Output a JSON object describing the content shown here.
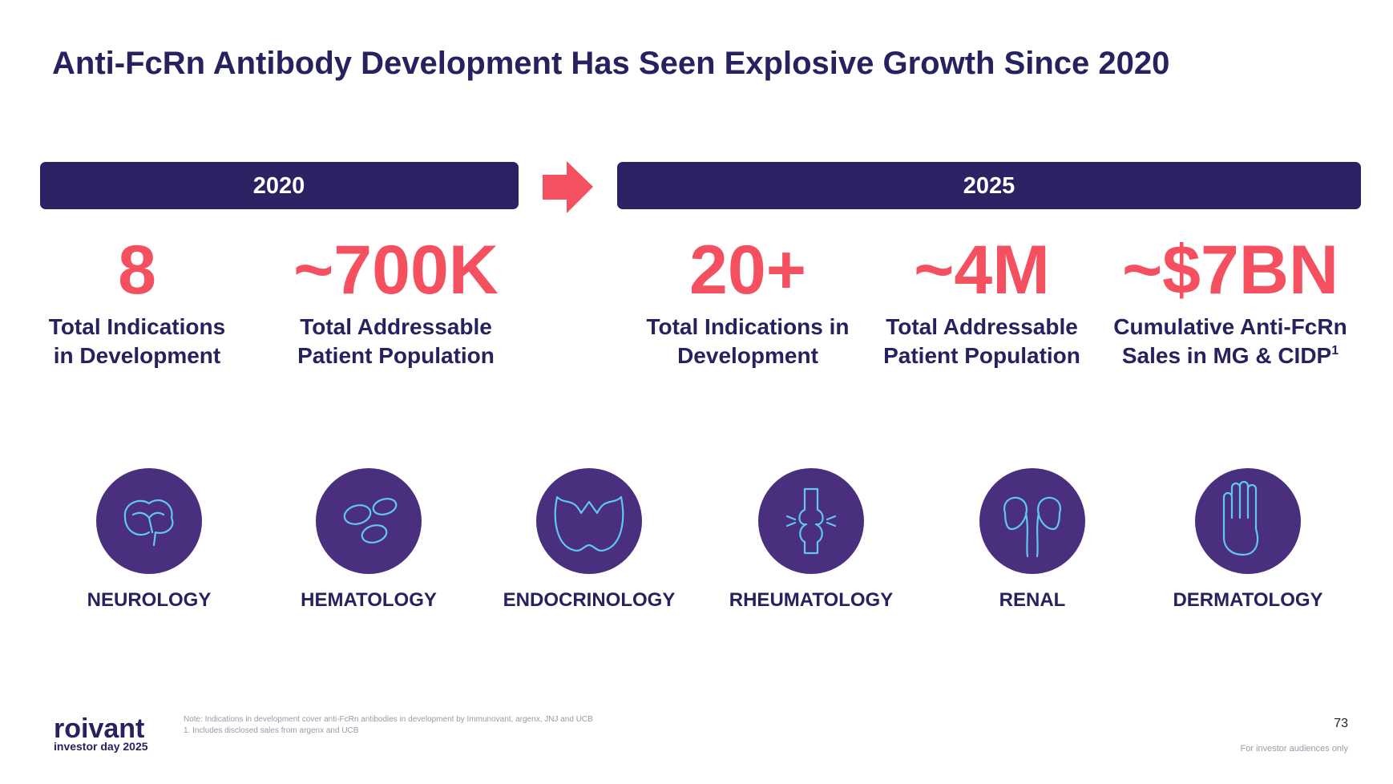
{
  "header": {
    "title": "Anti-FcRn Antibody Development Has Seen Explosive Growth Since 2020"
  },
  "periods": [
    {
      "label": "2020",
      "stats": [
        {
          "value": "8",
          "label_lines": [
            "Total Indications",
            "in Development"
          ]
        },
        {
          "value": "~700K",
          "label_lines": [
            "Total Addressable",
            "Patient Population"
          ]
        }
      ]
    },
    {
      "label": "2025",
      "stats": [
        {
          "value": "20+",
          "label_lines": [
            "Total Indications in",
            "Development"
          ]
        },
        {
          "value": "~4M",
          "label_lines": [
            "Total Addressable",
            "Patient Population"
          ]
        },
        {
          "value": "~$7BN",
          "label_lines": [
            "Cumulative Anti-FcRn",
            "Sales in MG & CIDP"
          ],
          "footnote_ref": "1"
        }
      ]
    }
  ],
  "therapeutic_areas": [
    "NEUROLOGY",
    "HEMATOLOGY",
    "ENDOCRINOLOGY",
    "RHEUMATOLOGY",
    "RENAL",
    "DERMATOLOGY"
  ],
  "footer": {
    "logo": "roivant",
    "logo_subtitle": "investor day 2025",
    "notes": [
      "Note: Indications in development cover anti-FcRn antibodies in development by Immunovant, argenx, JNJ and UCB",
      "1. Includes disclosed sales from argenx and UCB"
    ],
    "page_number": "73",
    "disclaimer": "For investor audiences only"
  }
}
